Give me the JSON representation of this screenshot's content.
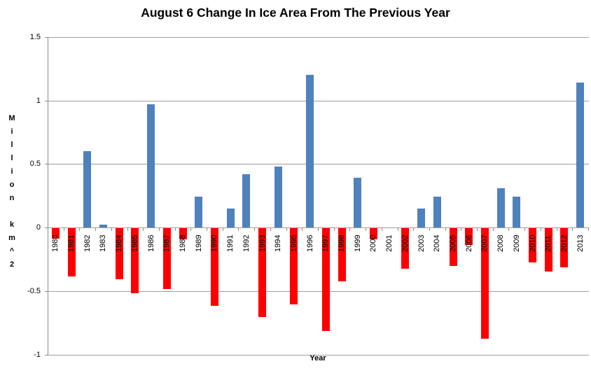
{
  "chart_data": {
    "type": "bar",
    "title": "August 6 Change In Ice Area From The Previous Year",
    "xlabel": "Year",
    "ylabel": "Million km^2",
    "categories": [
      "1980",
      "1981",
      "1982",
      "1983",
      "1984",
      "1985",
      "1986",
      "1987",
      "1988",
      "1989",
      "1990",
      "1991",
      "1992",
      "1993",
      "1994",
      "1995",
      "1996",
      "1997",
      "1998",
      "1999",
      "2000",
      "2001",
      "2002",
      "2003",
      "2004",
      "2005",
      "2006",
      "2007",
      "2008",
      "2009",
      "2010",
      "2011",
      "2012",
      "2013"
    ],
    "values": [
      -0.08,
      -0.38,
      0.6,
      0.02,
      -0.4,
      -0.51,
      0.97,
      -0.48,
      -0.09,
      0.24,
      -0.61,
      0.15,
      0.42,
      -0.7,
      0.48,
      -0.6,
      1.2,
      -0.81,
      -0.42,
      0.39,
      -0.09,
      0.0,
      -0.32,
      0.15,
      0.24,
      -0.3,
      -0.13,
      -0.87,
      0.31,
      0.24,
      -0.27,
      -0.34,
      -0.31,
      1.14
    ],
    "ylim": [
      -1,
      1.5
    ],
    "ytick_labels": [
      "1.5",
      "1",
      "0.5",
      "0",
      "-0.5",
      "-1"
    ],
    "ytick_values": [
      1.5,
      1,
      0.5,
      0,
      -0.5,
      -1
    ],
    "grid": true,
    "legend": "none",
    "positive_color": "#4F81BD",
    "negative_color": "#FF0000",
    "gridline_color": "#9e9e9e",
    "axis_color": "#8c8c8c",
    "text_color": "#000000"
  }
}
